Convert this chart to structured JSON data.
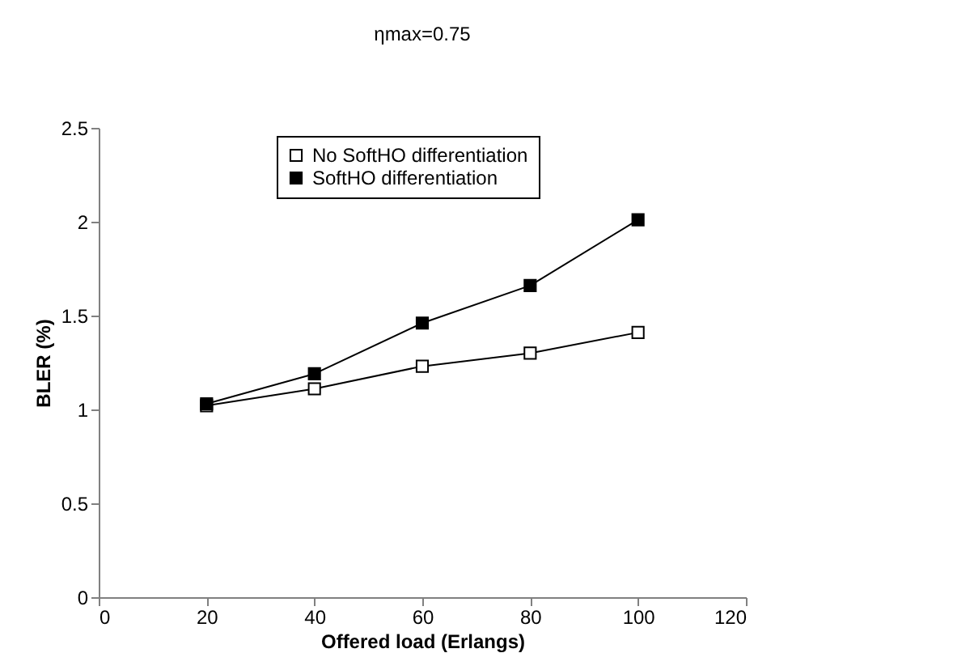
{
  "chart_data": {
    "type": "line",
    "title": "ηmax=0.75",
    "xlabel": "Offered load (Erlangs)",
    "ylabel": "BLER (%)",
    "x": [
      20,
      40,
      60,
      80,
      100
    ],
    "series": [
      {
        "name": "No SoftHO differentiation",
        "color": "#000000",
        "marker": "square",
        "values": [
          1.02,
          1.11,
          1.23,
          1.3,
          1.41
        ]
      },
      {
        "name": "SoftHO differentiation",
        "color": "#000000",
        "marker": "square",
        "values": [
          1.03,
          1.19,
          1.46,
          1.66,
          2.01
        ]
      }
    ],
    "xlim": [
      0,
      120
    ],
    "xticks": [
      0,
      20,
      40,
      60,
      80,
      100,
      120
    ],
    "ylim": [
      0,
      2.5
    ],
    "yticks": [
      0,
      0.5,
      1,
      1.5,
      2,
      2.5
    ],
    "grid": false,
    "legend": "top",
    "line_style": "solid"
  }
}
